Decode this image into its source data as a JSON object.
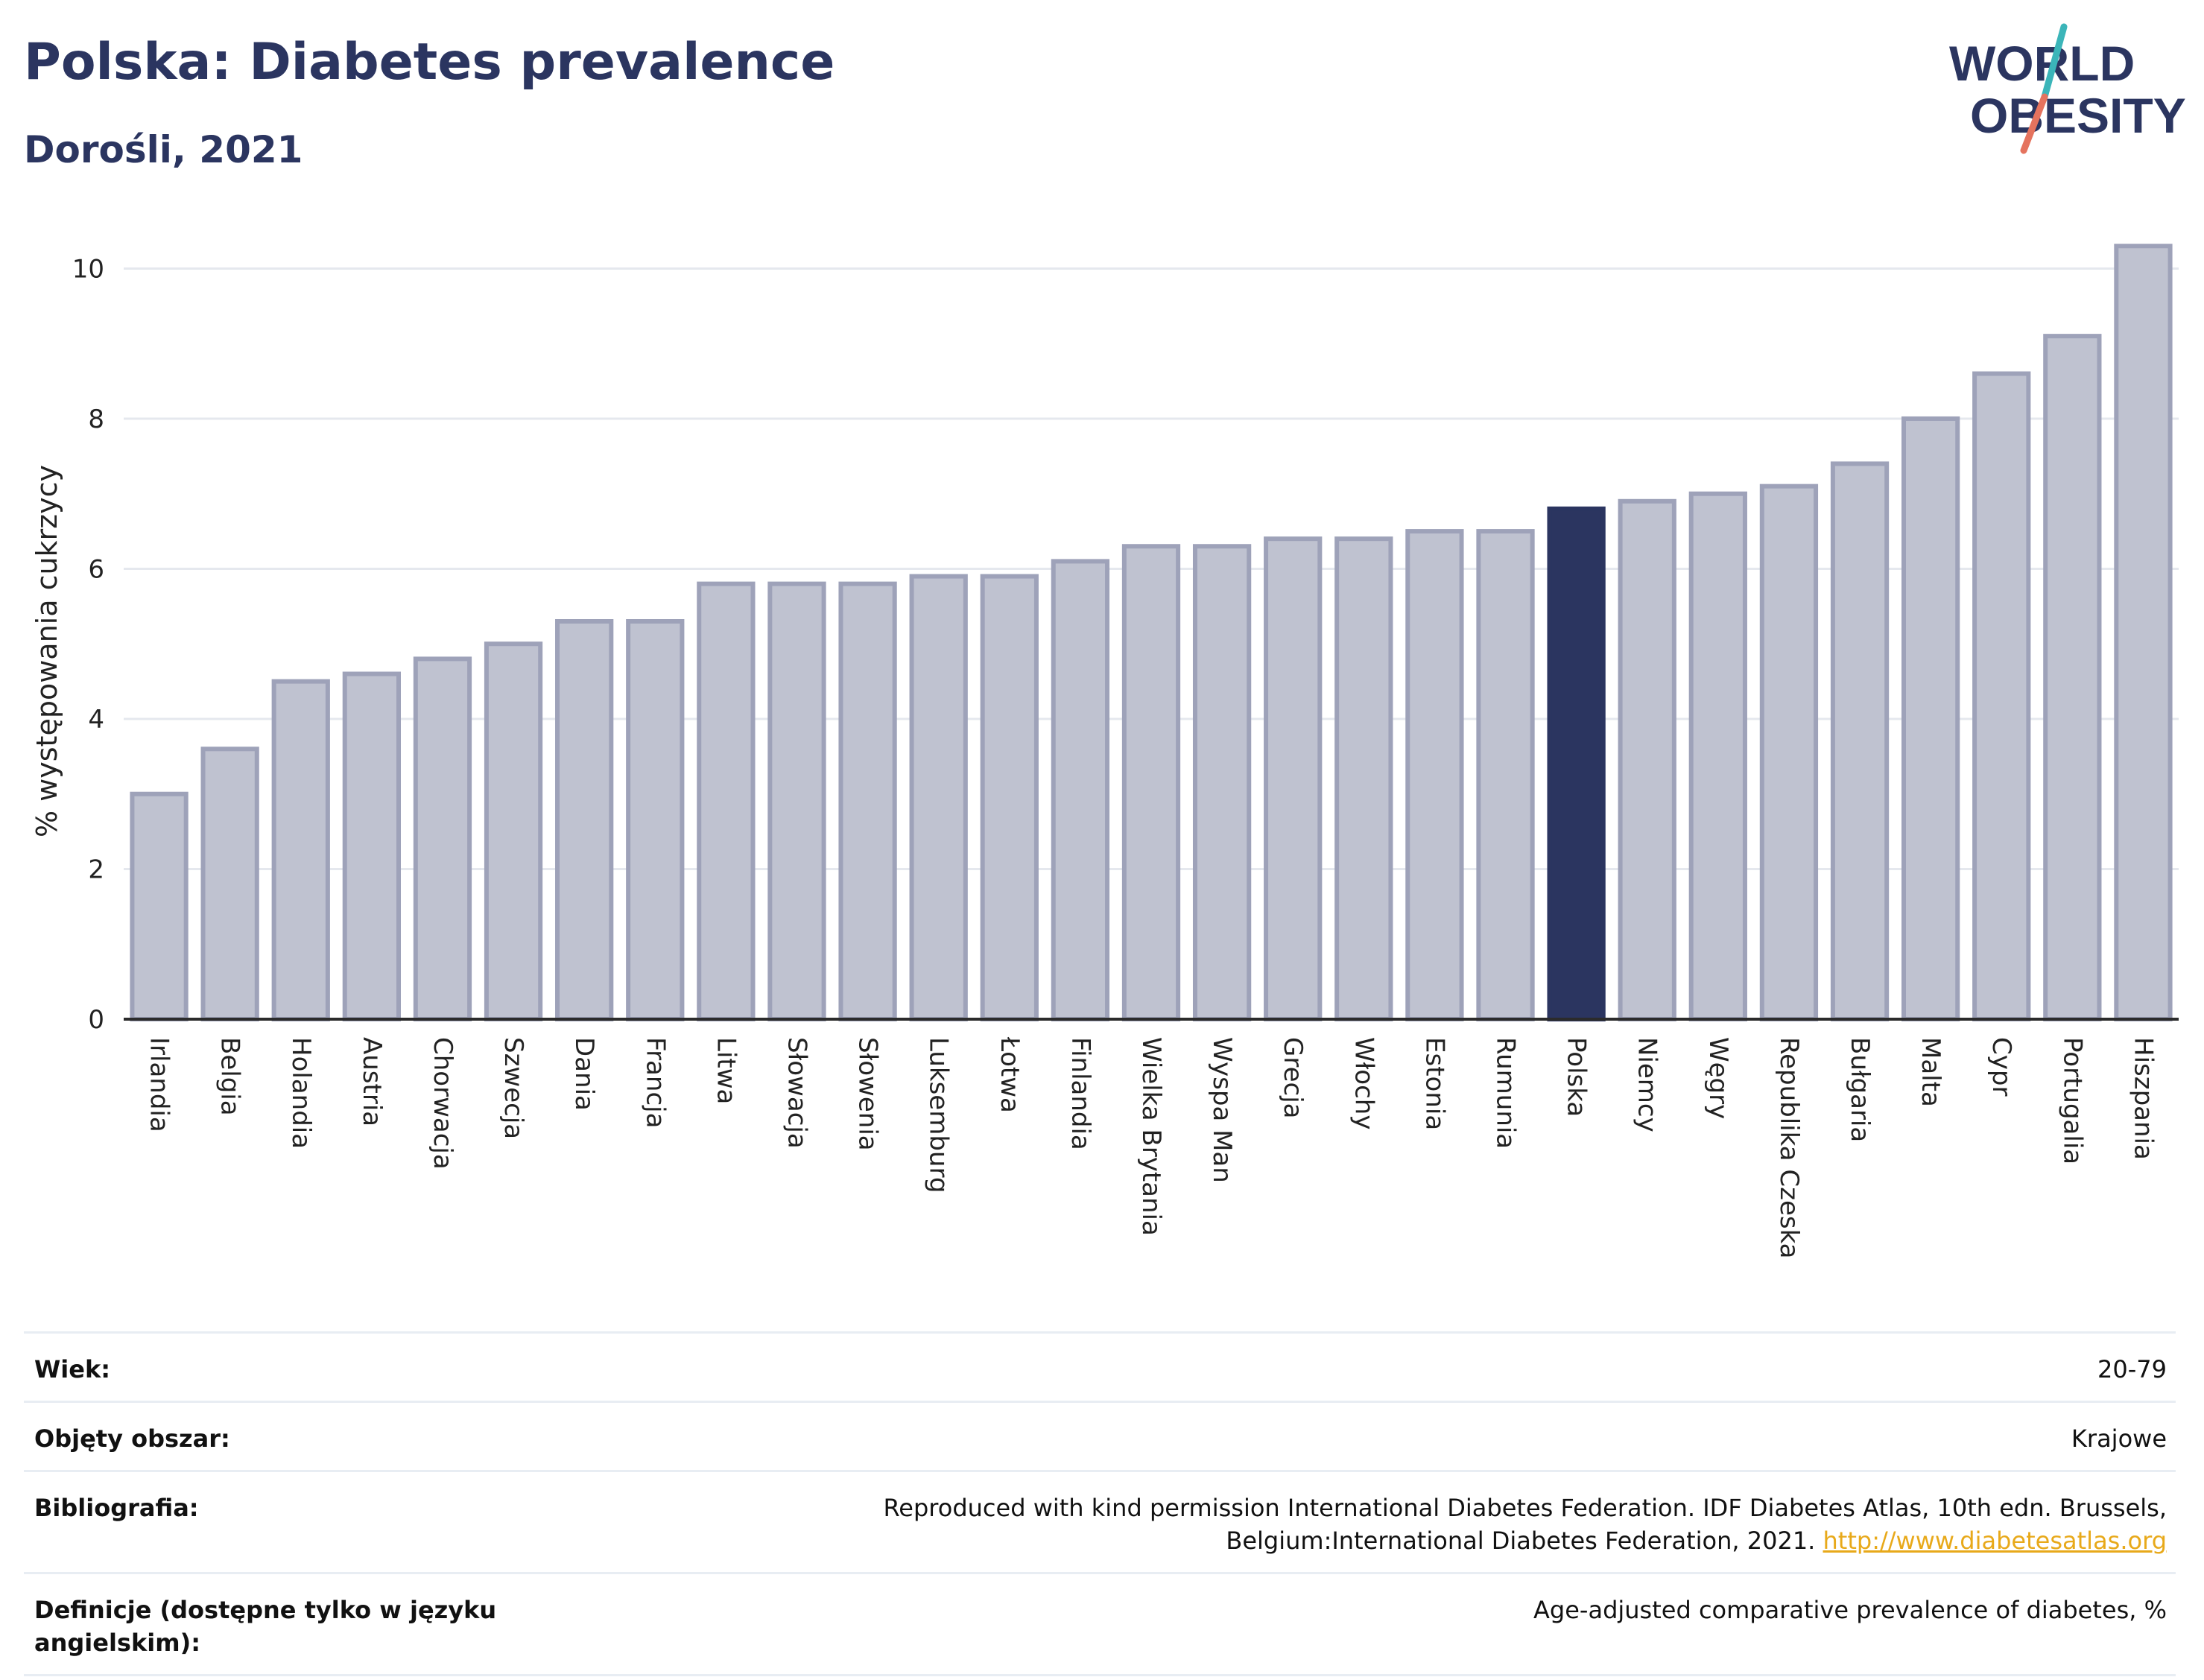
{
  "header": {
    "title": "Polska: Diabetes prevalence",
    "subtitle": "Dorośli, 2021"
  },
  "logo": {
    "line1": "WORLD",
    "line2": "OBESITY",
    "colors": {
      "text": "#2b3560",
      "slash_teal": "#3bb5b9",
      "slash_coral": "#e5735e"
    }
  },
  "chart_data": {
    "type": "bar",
    "ylabel": "% występowania cukrzycy",
    "xlabel": "",
    "ylim": [
      0,
      10.6
    ],
    "yticks": [
      0,
      2,
      4,
      6,
      8,
      10
    ],
    "grid": true,
    "categories": [
      "Irlandia",
      "Belgia",
      "Holandia",
      "Austria",
      "Chorwacja",
      "Szwecja",
      "Dania",
      "Francja",
      "Litwa",
      "Słowacja",
      "Słowenia",
      "Luksemburg",
      "Łotwa",
      "Finlandia",
      "Wielka Brytania",
      "Wyspa Man",
      "Grecja",
      "Włochy",
      "Estonia",
      "Rumunia",
      "Polska",
      "Niemcy",
      "Węgry",
      "Republika Czeska",
      "Bułgaria",
      "Malta",
      "Cypr",
      "Portugalia",
      "Hiszpania"
    ],
    "values": [
      3.0,
      3.6,
      4.5,
      4.6,
      4.8,
      5.0,
      5.3,
      5.3,
      5.8,
      5.8,
      5.8,
      5.9,
      5.9,
      6.1,
      6.3,
      6.3,
      6.4,
      6.4,
      6.5,
      6.5,
      6.8,
      6.9,
      7.0,
      7.1,
      7.4,
      8.0,
      8.6,
      9.1,
      10.3
    ],
    "highlight": "Polska",
    "colors": {
      "bar": "#bfc2d0",
      "bar_border": "#9ea2b9",
      "highlight": "#2b3560",
      "grid": "#e5e8ee",
      "axis": "#2b2b2b"
    }
  },
  "meta": {
    "rows": [
      {
        "label": "Wiek:",
        "value": "20-79"
      },
      {
        "label": "Objęty obszar:",
        "value": "Krajowe"
      },
      {
        "label": "Bibliografia:",
        "value": "Reproduced with kind permission International Diabetes Federation.  IDF Diabetes Atlas, 10th edn. Brussels, Belgium:International Diabetes Federation, 2021. ",
        "link": "http://www.diabetesatlas.org"
      },
      {
        "label": "Definicje (dostępne tylko w języku angielskim):",
        "value": "Age-adjusted comparative prevalence of diabetes, %"
      }
    ]
  }
}
